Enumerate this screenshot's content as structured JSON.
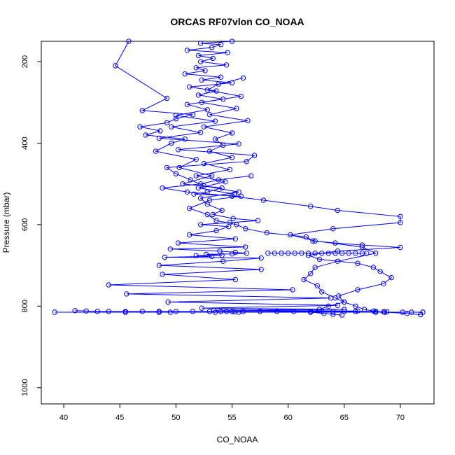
{
  "chart_data": {
    "type": "line",
    "title": "ORCAS RF07vlon CO_NOAA",
    "xlabel": "CO_NOAA",
    "ylabel": "Pressure (mbar)",
    "xlim": [
      38,
      73
    ],
    "ylim": [
      1040,
      150
    ],
    "y_reversed": true,
    "xticks": [
      40,
      45,
      50,
      55,
      60,
      65,
      70
    ],
    "yticks": [
      200,
      400,
      600,
      800,
      1000
    ],
    "grid": false,
    "legend": "none",
    "series_color": "#0000ff",
    "marker": "open-circle",
    "series": [
      {
        "x": [
          55.0,
          52.2,
          54.0,
          53.2,
          51.0,
          54.6,
          52.0,
          53.3,
          52.2,
          54.5,
          51.8,
          52.6,
          50.8,
          54.0,
          52.3,
          55.0,
          51.2,
          53.6,
          52.0,
          54.2,
          51.0,
          52.8,
          50.0,
          53.5,
          49.6,
          52.2,
          48.5,
          55.6,
          50.2,
          57.0,
          56.3,
          49.2,
          50.0,
          51.3,
          52.5,
          55.6,
          52.2,
          52.8,
          54.1,
          53.3,
          55.1,
          57.3,
          54.8,
          52.2,
          54.7,
          53.6,
          51.2,
          55.3,
          50.2,
          56.2,
          49.5,
          53.9,
          55.3,
          56.3,
          55.0,
          52.7,
          54.1,
          51.8,
          53.2,
          49.0,
          57.6,
          54.2,
          48.5,
          57.6,
          48.8,
          55.3,
          44.0,
          60.4,
          45.6,
          63.8,
          49.3,
          64.4,
          52.3,
          65.0,
          53.4,
          66.2,
          54.0,
          67.8,
          55.0,
          68.5,
          55.2,
          68.8,
          55.6,
          67.8,
          53.5,
          68.6,
          49.5,
          70.2,
          48.5,
          71.0,
          45.5,
          72.0,
          39.2,
          72.0
        ],
        "y": [
          150,
          155,
          158,
          165,
          172,
          178,
          185,
          192,
          200,
          208,
          215,
          222,
          230,
          238,
          245,
          252,
          262,
          272,
          282,
          292,
          305,
          318,
          332,
          346,
          360,
          374,
          388,
          402,
          416,
          430,
          445,
          460,
          475,
          490,
          505,
          520,
          535,
          550,
          565,
          575,
          585,
          590,
          595,
          600,
          605,
          615,
          625,
          635,
          645,
          655,
          660,
          665,
          668,
          670,
          672,
          673,
          675,
          676,
          678,
          680,
          682,
          690,
          700,
          710,
          722,
          735,
          748,
          760,
          770,
          780,
          790,
          798,
          805,
          808,
          810,
          812,
          813,
          813,
          813,
          814,
          814,
          814,
          815,
          815,
          815,
          815,
          815,
          815,
          815,
          815,
          815,
          815,
          815,
          815
        ]
      },
      {
        "x": [
          45.8,
          44.6,
          49.2,
          47.0,
          51.5,
          50.0,
          49.2,
          46.8,
          48.6,
          47.3,
          50.8,
          49.6,
          48.2,
          51.8,
          50.3,
          53.2,
          50.6,
          54.1,
          52.8,
          51.6,
          55.8,
          53.0,
          51.2,
          52.8,
          53.6,
          55.4,
          56.2,
          58.1,
          61.6,
          62.2,
          64.2,
          66.6,
          70.0,
          64.4,
          61.8,
          62.8,
          66.2,
          67.6,
          68.2,
          69.2,
          68.5,
          66.2,
          64.5,
          65.0,
          66.0,
          66.8,
          67.6,
          68.6,
          70.6,
          71.8
        ],
        "y": [
          150,
          210,
          290,
          320,
          330,
          340,
          350,
          360,
          370,
          380,
          390,
          400,
          420,
          440,
          460,
          480,
          500,
          510,
          520,
          525,
          530,
          540,
          560,
          575,
          590,
          600,
          610,
          620,
          630,
          640,
          645,
          650,
          656,
          665,
          675,
          685,
          695,
          705,
          715,
          730,
          745,
          760,
          775,
          790,
          800,
          808,
          812,
          815,
          818,
          821
        ]
      },
      {
        "x": [
          56.7,
          53.8,
          52.2,
          48.8,
          51.0,
          55.0,
          57.8,
          62.0,
          64.4,
          70.0,
          70.0,
          64.0,
          60.2,
          62.4,
          66.6,
          67.8,
          64.4,
          62.4,
          62.0,
          61.4,
          62.6,
          63.0,
          64.2,
          65.0,
          63.6,
          62.8,
          62.0,
          63.2,
          64.0,
          64.8
        ],
        "y": [
          480,
          490,
          500,
          510,
          520,
          530,
          540,
          555,
          565,
          580,
          595,
          610,
          625,
          640,
          655,
          670,
          690,
          705,
          720,
          735,
          750,
          765,
          780,
          790,
          800,
          808,
          815,
          818,
          820,
          822
        ]
      },
      {
        "x": [
          56.0,
          53.8,
          52.8,
          55.8,
          52.3,
          55.4,
          53.0,
          56.4,
          52.5,
          55.0,
          53.5,
          54.2,
          53.0,
          55.0,
          52.5,
          54.8,
          51.8,
          54.4,
          52.0,
          55.2
        ],
        "y": [
          240,
          255,
          270,
          285,
          300,
          315,
          330,
          345,
          360,
          375,
          390,
          405,
          420,
          435,
          450,
          465,
          480,
          495,
          510,
          525
        ]
      },
      {
        "x": [
          41.0,
          42.0,
          43.0,
          44.0,
          45.5,
          47.0,
          48.5,
          50.0,
          51.5,
          53.0,
          54.5,
          56.0,
          57.5,
          59.0,
          60.5,
          62.0,
          63.0,
          64.0,
          65.0,
          66.0
        ],
        "y": [
          811,
          812,
          813,
          813,
          813,
          813,
          813,
          813,
          813,
          813,
          813,
          813,
          813,
          813,
          813,
          813,
          813,
          813,
          813,
          813
        ]
      },
      {
        "x": [
          58.2,
          58.8,
          59.4,
          60.0,
          60.6,
          61.2,
          61.8,
          62.4,
          63.0,
          63.6,
          64.2,
          64.8,
          65.4,
          66.0,
          66.6,
          67.0
        ],
        "y": [
          670,
          670,
          670,
          670,
          670,
          670,
          670,
          670,
          670,
          670,
          670,
          670,
          670,
          670,
          670,
          670
        ]
      }
    ]
  }
}
